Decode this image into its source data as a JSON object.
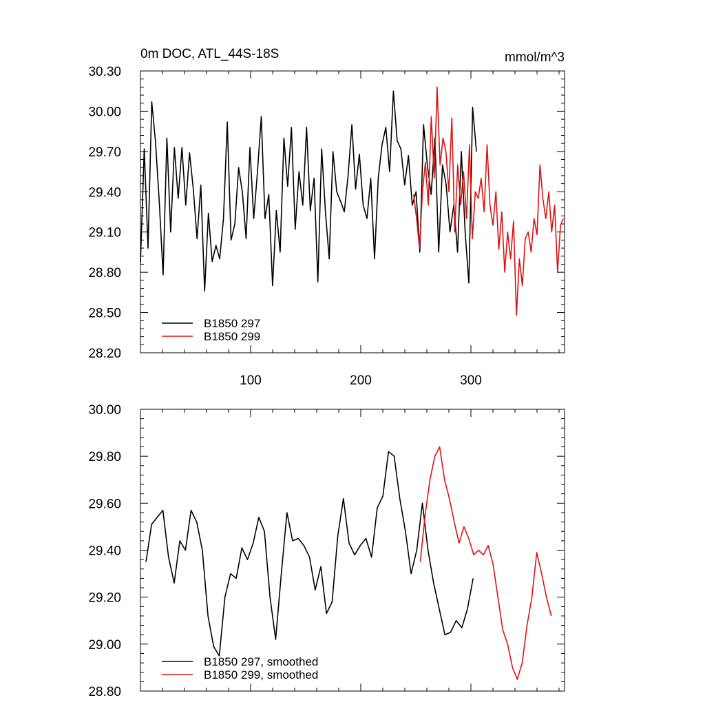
{
  "colors": {
    "run_297": "#000000",
    "run_299": "#e01010",
    "axis": "#000000"
  },
  "chart_data": [
    {
      "type": "line",
      "title": "0m DOC, ATL_44S-18S",
      "units_label": "mmol/m^3",
      "xlabel": "",
      "ylabel": "",
      "xlim": [
        0,
        385
      ],
      "ylim": [
        28.2,
        30.3
      ],
      "xticks": [
        100,
        200,
        300
      ],
      "xtick_labels": [
        "100",
        "200",
        "300"
      ],
      "yticks": [
        28.2,
        28.5,
        28.8,
        29.1,
        29.4,
        29.7,
        30.0,
        30.3
      ],
      "ytick_labels": [
        "28.20",
        "28.50",
        "28.80",
        "29.10",
        "29.40",
        "29.70",
        "30.00",
        "30.30"
      ],
      "legend_position": "bottom-left",
      "series": [
        {
          "name": "B1850 297",
          "color_key": "run_297",
          "x_start": 0,
          "x_step": 5,
          "values": [
            28.87,
            29.72,
            28.98,
            30.07,
            29.77,
            29.32,
            28.78,
            29.8,
            29.1,
            29.73,
            29.35,
            29.73,
            29.3,
            29.69,
            29.42,
            29.05,
            29.45,
            28.66,
            29.24,
            28.88,
            29.0,
            28.9,
            29.2,
            29.92,
            29.04,
            29.16,
            29.58,
            29.4,
            29.05,
            29.73,
            29.2,
            29.55,
            29.96,
            29.2,
            29.38,
            28.7,
            29.26,
            28.95,
            29.8,
            29.44,
            29.88,
            29.12,
            29.55,
            29.3,
            29.88,
            29.26,
            29.5,
            28.73,
            29.72,
            29.25,
            28.9,
            29.7,
            29.4,
            29.33,
            29.25,
            29.52,
            29.9,
            29.42,
            29.68,
            29.3,
            29.2,
            29.5,
            28.9,
            29.5,
            29.75,
            29.88,
            29.55,
            30.15,
            29.78,
            29.72,
            29.45,
            29.67,
            29.3,
            29.4,
            28.95,
            29.9,
            29.6,
            29.38,
            29.8,
            28.95,
            29.6,
            29.45,
            29.1,
            29.3,
            28.95,
            29.7,
            29.1,
            28.72,
            30.03,
            29.7
          ],
          "x_end": 305
        },
        {
          "name": "B1850 299",
          "color_key": "run_299",
          "x_start": 248,
          "x_step": 4,
          "values": [
            29.38,
            29.2,
            28.98,
            29.4,
            29.62,
            29.3,
            29.96,
            29.5,
            30.18,
            29.6,
            29.8,
            29.7,
            29.4,
            29.95,
            29.1,
            29.6,
            29.3,
            29.55,
            29.2,
            29.75,
            29.05,
            29.4,
            29.35,
            29.5,
            29.25,
            29.75,
            29.3,
            29.15,
            29.4,
            28.97,
            29.25,
            28.8,
            29.1,
            28.9,
            29.18,
            28.48,
            28.9,
            28.7,
            29.05,
            29.1,
            28.95,
            29.2,
            29.08,
            29.6,
            29.35,
            29.2,
            29.4,
            29.1,
            29.3,
            28.8,
            29.15,
            29.2
          ],
          "x_end": 384
        }
      ]
    },
    {
      "type": "line",
      "title": "",
      "xlabel": "",
      "ylabel": "",
      "xlim": [
        0,
        385
      ],
      "ylim": [
        28.8,
        30.0
      ],
      "xticks": [
        100,
        200,
        300
      ],
      "xtick_labels": [],
      "yticks": [
        28.8,
        29.0,
        29.2,
        29.4,
        29.6,
        29.8,
        30.0
      ],
      "ytick_labels": [
        "28.80",
        "29.00",
        "29.20",
        "29.40",
        "29.60",
        "29.80",
        "30.00"
      ],
      "legend_position": "bottom-left",
      "series": [
        {
          "name": "B1850 297, smoothed",
          "color_key": "run_297",
          "x_start": 5,
          "x_step": 5,
          "values": [
            29.35,
            29.51,
            29.54,
            29.57,
            29.37,
            29.26,
            29.44,
            29.4,
            29.57,
            29.52,
            29.4,
            29.12,
            28.99,
            28.95,
            29.2,
            29.3,
            29.28,
            29.41,
            29.36,
            29.43,
            29.54,
            29.48,
            29.2,
            29.02,
            29.3,
            29.56,
            29.44,
            29.45,
            29.42,
            29.37,
            29.23,
            29.33,
            29.13,
            29.18,
            29.46,
            29.62,
            29.43,
            29.38,
            29.42,
            29.45,
            29.37,
            29.58,
            29.63,
            29.82,
            29.8,
            29.62,
            29.48,
            29.3,
            29.4,
            29.6,
            29.4,
            29.26,
            29.15,
            29.04,
            29.05,
            29.1,
            29.07,
            29.15,
            29.28
          ],
          "x_end": 302
        },
        {
          "name": "B1850 299, smoothed",
          "color_key": "run_299",
          "x_start": 254,
          "x_step": 4.4,
          "values": [
            29.35,
            29.55,
            29.7,
            29.8,
            29.84,
            29.7,
            29.62,
            29.52,
            29.43,
            29.5,
            29.45,
            29.38,
            29.4,
            29.38,
            29.42,
            29.34,
            29.2,
            29.06,
            29.0,
            28.9,
            28.85,
            28.92,
            29.08,
            29.2,
            29.39,
            29.3,
            29.2,
            29.12
          ],
          "x_end": 373
        }
      ]
    }
  ]
}
